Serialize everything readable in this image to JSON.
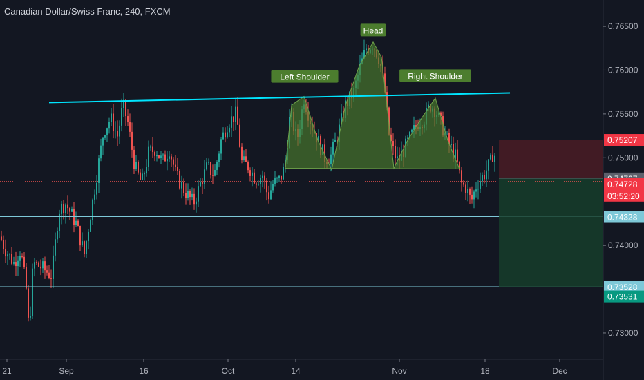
{
  "header": {
    "title": "Canadian Dollar/Swiss Franc, 240, FXCM"
  },
  "chart_data": {
    "type": "candlestick",
    "x_labels": [
      "21",
      "Sep",
      "16",
      "Oct",
      "14",
      "Nov",
      "18",
      "Dec"
    ],
    "y_ticks": [
      "0.76500",
      "0.76000",
      "0.75500",
      "0.75000",
      "0.74000",
      "0.73000"
    ],
    "ylim": [
      0.727,
      0.768
    ],
    "grid": false,
    "annotations": {
      "pattern_labels": [
        "Left Shoulder",
        "Head",
        "Right Shoulder"
      ],
      "trendline": {
        "start_price": 0.7563,
        "end_price": 0.7574
      },
      "neckline_price": 0.7488,
      "horizontal_levels": [
        0.74328,
        0.73528
      ]
    },
    "position": {
      "stop_price": 0.75207,
      "entry_price": 0.74767,
      "target_price": 0.73528
    },
    "price_badges": [
      {
        "value": "0.75207",
        "price": 0.75207,
        "color": "#f23645"
      },
      {
        "value": "0.74767",
        "price": 0.74767,
        "color": "#5d606b"
      },
      {
        "value": "0.74728",
        "price": 0.74728,
        "color": "#f23645",
        "sub": "03:52:20"
      },
      {
        "value": "0.74328",
        "price": 0.74328,
        "color": "#7ec8d8"
      },
      {
        "value": "0.73528",
        "price": 0.73528,
        "color": "#7ec8d8"
      },
      {
        "value": "0.73531",
        "price": 0.73531,
        "color": "#089981"
      }
    ],
    "colors": {
      "background": "#131722",
      "up": "#26a69a",
      "down": "#ef5350",
      "trendline": "#00e5ff",
      "pattern_fill": "#4c7d2e",
      "level": "#7ec8d8",
      "last_price_line": "#ef5350"
    }
  }
}
